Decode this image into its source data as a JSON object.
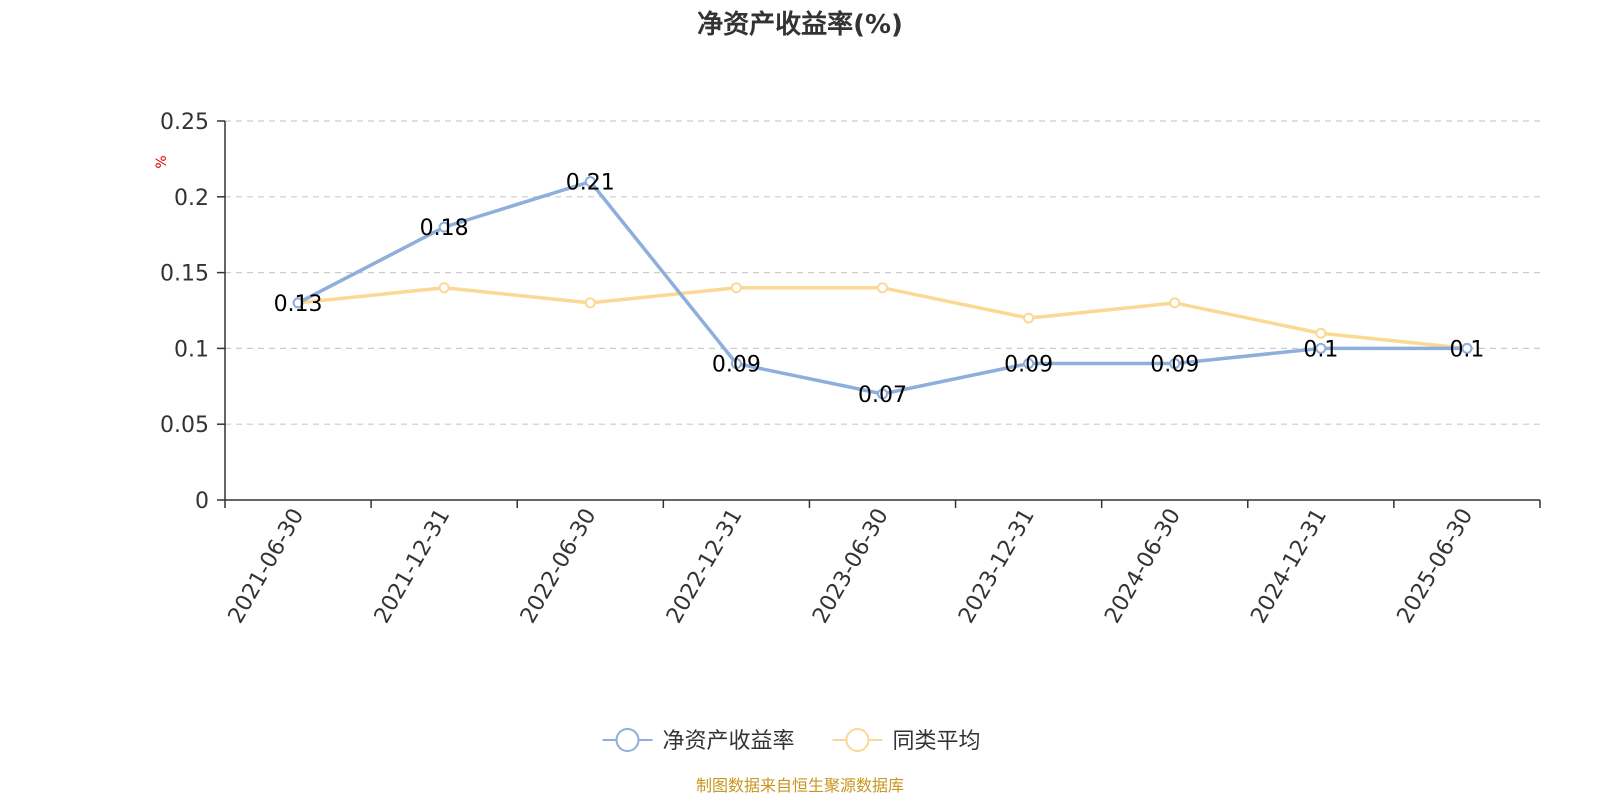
{
  "chart_data": {
    "type": "line",
    "title": "净资产收益率(%)",
    "ylabel": "%",
    "xlabel": "",
    "categories": [
      "2021-06-30",
      "2021-12-31",
      "2022-06-30",
      "2022-12-31",
      "2023-06-30",
      "2023-12-31",
      "2024-06-30",
      "2024-12-31",
      "2025-06-30"
    ],
    "ylim": [
      0,
      0.25
    ],
    "yticks": [
      "0",
      "0.05",
      "0.1",
      "0.15",
      "0.2",
      "0.25"
    ],
    "grid": true,
    "legend_position": "bottom",
    "series": [
      {
        "name": "净资产收益率",
        "color": "#8eaedb",
        "values": [
          0.13,
          0.18,
          0.21,
          0.09,
          0.07,
          0.09,
          0.09,
          0.1,
          0.1
        ],
        "labels": [
          "0.13",
          "0.18",
          "0.21",
          "0.09",
          "0.07",
          "0.09",
          "0.09",
          "0.1",
          "0.1"
        ]
      },
      {
        "name": "同类平均",
        "color": "#fbd995",
        "values": [
          0.13,
          0.14,
          0.13,
          0.14,
          0.14,
          0.12,
          0.13,
          0.11,
          0.1
        ]
      }
    ],
    "source": "制图数据来自恒生聚源数据库"
  }
}
